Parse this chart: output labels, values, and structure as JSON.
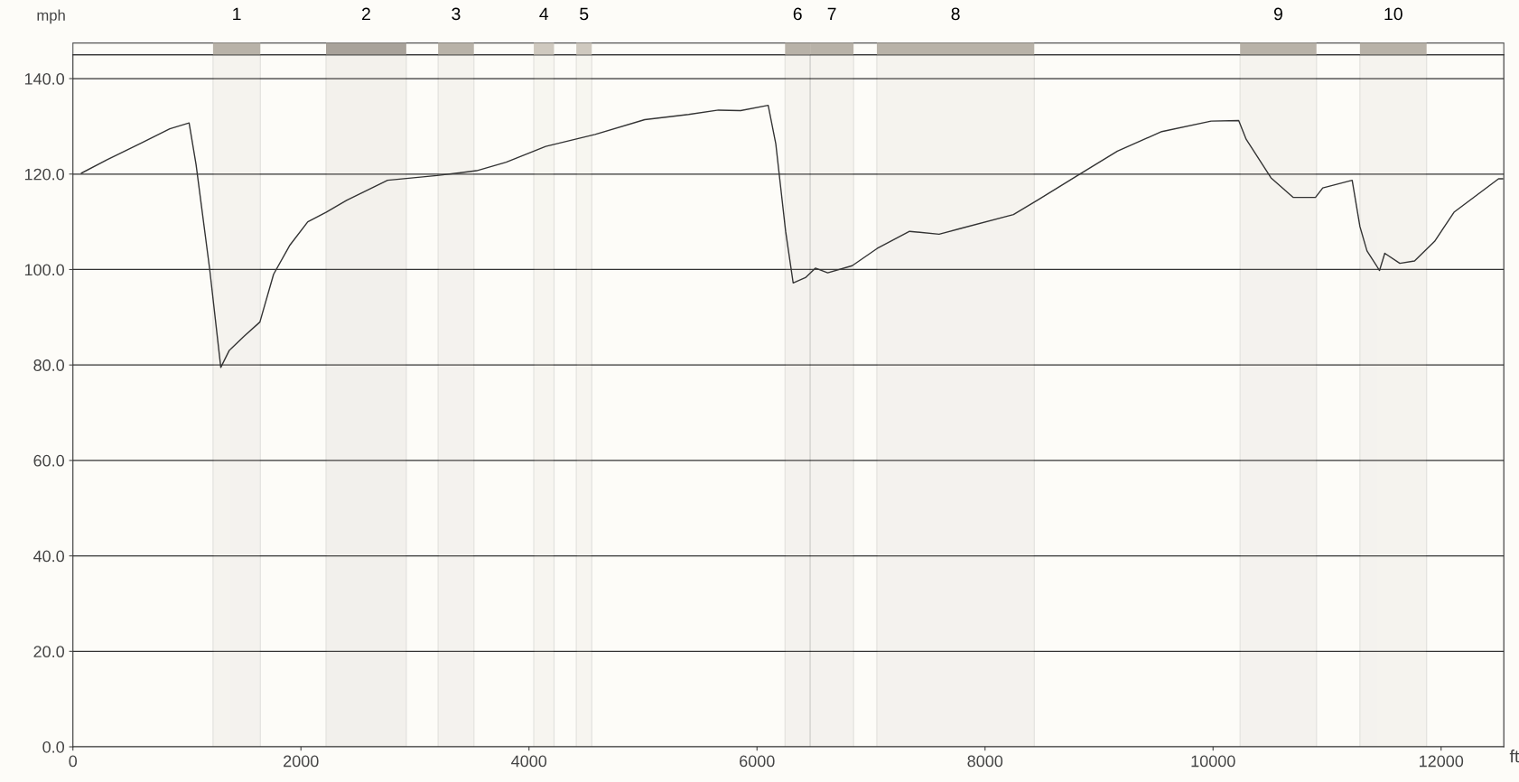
{
  "chart_data": {
    "type": "line",
    "ylabel": "mph",
    "xlabel": "ft",
    "xlim": [
      0,
      12550
    ],
    "ylim": [
      0,
      145
    ],
    "xticks": [
      0,
      2000,
      4000,
      6000,
      8000,
      10000,
      12000
    ],
    "yticks": [
      {
        "value": 0,
        "label": "0.0"
      },
      {
        "value": 20,
        "label": "20.0"
      },
      {
        "value": 40,
        "label": "40.0"
      },
      {
        "value": 60,
        "label": "60.0"
      },
      {
        "value": 80,
        "label": "80.0"
      },
      {
        "value": 100,
        "label": "100.0"
      },
      {
        "value": 120,
        "label": "120.0"
      },
      {
        "value": 140,
        "label": "140.0"
      }
    ],
    "grid": "y",
    "marker": "none",
    "line_style": "solid",
    "series": [
      {
        "color": "#333333",
        "x": [
          75,
          300,
          600,
          850,
          1019,
          1080,
          1200,
          1297,
          1370,
          1500,
          1640,
          1760,
          1900,
          2060,
          2220,
          2400,
          2760,
          3193,
          3540,
          3800,
          4147,
          4580,
          5015,
          5400,
          5662,
          5856,
          6098,
          6165,
          6251,
          6317,
          6425,
          6512,
          6620,
          6835,
          7053,
          7338,
          7597,
          7771,
          8249,
          8464,
          8811,
          9161,
          9550,
          9983,
          10225,
          10290,
          10508,
          10704,
          10898,
          10962,
          11220,
          11288,
          11350,
          11460,
          11506,
          11638,
          11767,
          11943,
          12113,
          12504,
          12540
        ],
        "values": [
          120.2,
          123,
          126.5,
          129.5,
          130.7,
          122,
          100,
          79.5,
          83,
          86,
          89,
          99,
          105,
          110,
          112,
          114.5,
          118.7,
          119.7,
          120.7,
          122.5,
          125.8,
          128.3,
          131.4,
          132.5,
          133.4,
          133.3,
          134.4,
          126.3,
          108,
          97.2,
          98.3,
          100.3,
          99.3,
          100.8,
          104.4,
          108,
          107.4,
          108.5,
          111.5,
          114.6,
          119.7,
          124.8,
          128.9,
          131.1,
          131.2,
          127.3,
          119.2,
          115.1,
          115.1,
          117.1,
          118.7,
          109,
          103.9,
          99.8,
          103.4,
          101.3,
          101.8,
          105.9,
          112,
          119,
          119
        ]
      }
    ],
    "bands": [
      {
        "axis": "x",
        "from": 1229,
        "to": 1644,
        "label": "1",
        "color": "#b8b2a8"
      },
      {
        "axis": "x",
        "from": 2220,
        "to": 2924,
        "label": "2",
        "color": "#a8a29a"
      },
      {
        "axis": "x",
        "from": 3203,
        "to": 3517,
        "label": "3",
        "color": "#b8b2a8"
      },
      {
        "axis": "x",
        "from": 4042,
        "to": 4220,
        "label": "4",
        "color": "#cfc9bf"
      },
      {
        "axis": "x",
        "from": 4415,
        "to": 4551,
        "label": "5",
        "color": "#cfc9bf"
      },
      {
        "axis": "x",
        "from": 6246,
        "to": 6466,
        "label": "6",
        "color": "#b8b2a8"
      },
      {
        "axis": "x",
        "from": 6466,
        "to": 6847,
        "label": "7",
        "color": "#b8b2a8"
      },
      {
        "axis": "x",
        "from": 7051,
        "to": 8432,
        "label": "8",
        "color": "#b8b2a8"
      },
      {
        "axis": "x",
        "from": 10237,
        "to": 10907,
        "label": "9",
        "color": "#b8b2a8"
      },
      {
        "axis": "x",
        "from": 11288,
        "to": 11873,
        "label": "10",
        "color": "#b8b2a8"
      }
    ]
  }
}
